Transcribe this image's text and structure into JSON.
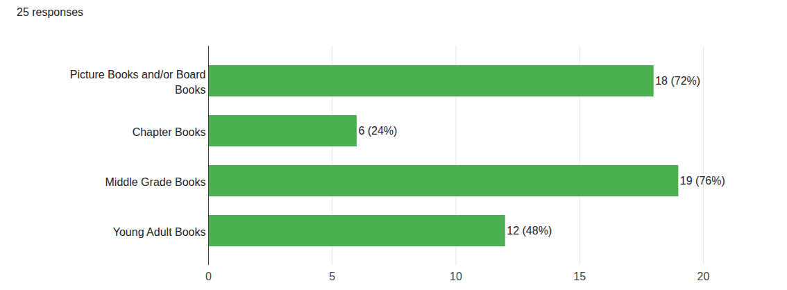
{
  "chart_data": {
    "type": "bar",
    "title": "25 responses",
    "orientation": "horizontal",
    "categories": [
      "Picture Books and/or Board Books",
      "Chapter Books",
      "Middle Grade Books",
      "Young Adult Books"
    ],
    "values": [
      18,
      6,
      19,
      12
    ],
    "value_labels": [
      "18 (72%)",
      "6 (24%)",
      "19 (76%)",
      "12 (48%)"
    ],
    "data_labels": true,
    "color": "#4caf50",
    "xlim": [
      0,
      20
    ],
    "xticks": [
      0,
      5,
      10,
      15,
      20
    ],
    "grid": true
  }
}
